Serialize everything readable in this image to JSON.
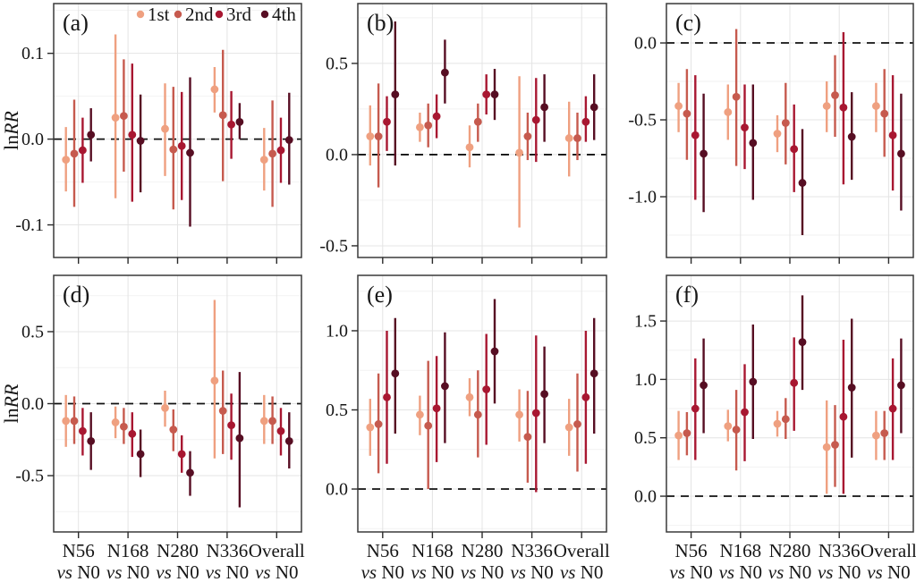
{
  "figure": {
    "background": "#ffffff"
  },
  "chart_data": {
    "type": "scatter",
    "subtype": "point-with-error-bars",
    "ylabel": {
      "plain": "ln",
      "italic": "RR"
    },
    "categories": [
      "N56",
      "N168",
      "N280",
      "N336",
      "Overall"
    ],
    "category_line2": {
      "italic": "vs",
      "rest": "N0"
    },
    "series": [
      {
        "name": "1st",
        "color": "#EFA080"
      },
      {
        "name": "2nd",
        "color": "#C65A4E"
      },
      {
        "name": "3rd",
        "color": "#A81731"
      },
      {
        "name": "4th",
        "color": "#570E23"
      }
    ],
    "legend_position": "top-of-panel-a",
    "grid": "light-gray-major-and-minor",
    "zero_line": 0,
    "panels": [
      {
        "label": "(a)",
        "show_ylabel": true,
        "show_legend": true,
        "show_xlabels": false,
        "ylim": [
          -0.138,
          0.158
        ],
        "yticks": [
          {
            "v": 0.1,
            "t": "0.1"
          },
          {
            "v": 0.0,
            "t": "0.0"
          },
          {
            "v": -0.1,
            "t": "-0.1"
          }
        ],
        "values": [
          [
            [
              -0.024,
              -0.061,
              0.014
            ],
            [
              -0.017,
              -0.079,
              0.046
            ],
            [
              -0.013,
              -0.051,
              0.025
            ],
            [
              0.005,
              -0.026,
              0.036
            ]
          ],
          [
            [
              0.025,
              -0.069,
              0.122
            ],
            [
              0.027,
              -0.038,
              0.093
            ],
            [
              0.005,
              -0.073,
              0.088
            ],
            [
              -0.002,
              -0.062,
              0.052
            ]
          ],
          [
            [
              0.012,
              -0.043,
              0.065
            ],
            [
              -0.012,
              -0.082,
              0.061
            ],
            [
              -0.008,
              -0.071,
              0.055
            ],
            [
              -0.016,
              -0.102,
              0.072
            ]
          ],
          [
            [
              0.058,
              0.031,
              0.084
            ],
            [
              0.028,
              -0.049,
              0.104
            ],
            [
              0.017,
              -0.023,
              0.056
            ],
            [
              0.02,
              0.0,
              0.042
            ]
          ],
          [
            [
              -0.024,
              -0.06,
              0.013
            ],
            [
              -0.017,
              -0.079,
              0.045
            ],
            [
              -0.013,
              -0.051,
              0.025
            ],
            [
              -0.001,
              -0.053,
              0.054
            ]
          ]
        ]
      },
      {
        "label": "(b)",
        "show_ylabel": false,
        "show_legend": false,
        "show_xlabels": false,
        "ylim": [
          -0.564,
          0.828
        ],
        "yticks": [
          {
            "v": 0.5,
            "t": "0.5"
          },
          {
            "v": 0.0,
            "t": "0.0"
          },
          {
            "v": -0.5,
            "t": "-0.5"
          }
        ],
        "values": [
          [
            [
              0.1,
              -0.06,
              0.27
            ],
            [
              0.1,
              -0.18,
              0.39
            ],
            [
              0.18,
              0.02,
              0.32
            ],
            [
              0.33,
              -0.06,
              0.73
            ]
          ],
          [
            [
              0.15,
              0.07,
              0.23
            ],
            [
              0.16,
              0.04,
              0.28
            ],
            [
              0.21,
              0.09,
              0.33
            ],
            [
              0.45,
              0.28,
              0.63
            ]
          ],
          [
            [
              0.04,
              -0.07,
              0.16
            ],
            [
              0.18,
              0.07,
              0.28
            ],
            [
              0.33,
              0.22,
              0.44
            ],
            [
              0.33,
              0.19,
              0.47
            ]
          ],
          [
            [
              0.01,
              -0.4,
              0.43
            ],
            [
              0.1,
              -0.03,
              0.23
            ],
            [
              0.19,
              -0.04,
              0.42
            ],
            [
              0.26,
              0.07,
              0.44
            ]
          ],
          [
            [
              0.09,
              -0.12,
              0.29
            ],
            [
              0.09,
              -0.03,
              0.23
            ],
            [
              0.18,
              0.07,
              0.32
            ],
            [
              0.26,
              0.08,
              0.44
            ]
          ]
        ]
      },
      {
        "label": "(c)",
        "show_ylabel": false,
        "show_legend": false,
        "show_xlabels": false,
        "ylim": [
          -1.395,
          0.256
        ],
        "yticks": [
          {
            "v": 0.0,
            "t": "0.0"
          },
          {
            "v": -0.5,
            "t": "-0.5"
          },
          {
            "v": -1.0,
            "t": "-1.0"
          }
        ],
        "values": [
          [
            [
              -0.41,
              -0.58,
              -0.26
            ],
            [
              -0.46,
              -0.76,
              -0.17
            ],
            [
              -0.6,
              -1.02,
              -0.21
            ],
            [
              -0.72,
              -1.1,
              -0.33
            ]
          ],
          [
            [
              -0.45,
              -0.63,
              -0.27
            ],
            [
              -0.35,
              -0.8,
              0.09
            ],
            [
              -0.55,
              -0.82,
              -0.27
            ],
            [
              -0.65,
              -1.02,
              -0.27
            ]
          ],
          [
            [
              -0.59,
              -0.71,
              -0.47
            ],
            [
              -0.52,
              -0.79,
              -0.26
            ],
            [
              -0.69,
              -0.97,
              -0.4
            ],
            [
              -0.91,
              -1.25,
              -0.56
            ]
          ],
          [
            [
              -0.41,
              -0.58,
              -0.25
            ],
            [
              -0.34,
              -0.61,
              -0.08
            ],
            [
              -0.42,
              -0.92,
              0.07
            ],
            [
              -0.61,
              -0.89,
              -0.32
            ]
          ],
          [
            [
              -0.41,
              -0.58,
              -0.26
            ],
            [
              -0.46,
              -0.74,
              -0.17
            ],
            [
              -0.6,
              -0.96,
              -0.21
            ],
            [
              -0.72,
              -1.09,
              -0.33
            ]
          ]
        ]
      },
      {
        "label": "(d)",
        "show_ylabel": true,
        "show_legend": false,
        "show_xlabels": true,
        "ylim": [
          -0.891,
          0.891
        ],
        "yticks": [
          {
            "v": 0.5,
            "t": "0.5"
          },
          {
            "v": 0.0,
            "t": "0.0"
          },
          {
            "v": -0.5,
            "t": "-0.5"
          }
        ],
        "values": [
          [
            [
              -0.12,
              -0.3,
              0.06
            ],
            [
              -0.12,
              -0.28,
              0.05
            ],
            [
              -0.19,
              -0.36,
              -0.03
            ],
            [
              -0.26,
              -0.46,
              -0.06
            ]
          ],
          [
            [
              -0.13,
              -0.24,
              -0.02
            ],
            [
              -0.16,
              -0.28,
              -0.03
            ],
            [
              -0.21,
              -0.37,
              -0.06
            ],
            [
              -0.35,
              -0.51,
              -0.18
            ]
          ],
          [
            [
              -0.03,
              -0.16,
              0.09
            ],
            [
              -0.18,
              -0.33,
              -0.04
            ],
            [
              -0.35,
              -0.48,
              -0.22
            ],
            [
              -0.48,
              -0.64,
              -0.33
            ]
          ],
          [
            [
              0.16,
              -0.38,
              0.72
            ],
            [
              -0.05,
              -0.35,
              0.23
            ],
            [
              -0.15,
              -0.39,
              0.07
            ],
            [
              -0.24,
              -0.72,
              0.22
            ]
          ],
          [
            [
              -0.12,
              -0.28,
              0.06
            ],
            [
              -0.12,
              -0.28,
              0.05
            ],
            [
              -0.19,
              -0.36,
              -0.03
            ],
            [
              -0.26,
              -0.45,
              -0.06
            ]
          ]
        ]
      },
      {
        "label": "(e)",
        "show_ylabel": false,
        "show_legend": false,
        "show_xlabels": true,
        "ylim": [
          -0.271,
          1.35
        ],
        "yticks": [
          {
            "v": 1.0,
            "t": "1.0"
          },
          {
            "v": 0.5,
            "t": "0.5"
          },
          {
            "v": 0.0,
            "t": "0.0"
          }
        ],
        "values": [
          [
            [
              0.39,
              0.21,
              0.57
            ],
            [
              0.41,
              0.1,
              0.73
            ],
            [
              0.58,
              0.16,
              1.0
            ],
            [
              0.73,
              0.35,
              1.08
            ]
          ],
          [
            [
              0.47,
              0.34,
              0.59
            ],
            [
              0.4,
              0.0,
              0.81
            ],
            [
              0.51,
              0.17,
              0.84
            ],
            [
              0.65,
              0.29,
              0.99
            ]
          ],
          [
            [
              0.58,
              0.46,
              0.7
            ],
            [
              0.47,
              0.2,
              0.75
            ],
            [
              0.63,
              0.28,
              0.98
            ],
            [
              0.87,
              0.54,
              1.2
            ]
          ],
          [
            [
              0.47,
              0.3,
              0.63
            ],
            [
              0.33,
              0.04,
              0.62
            ],
            [
              0.48,
              -0.02,
              0.97
            ],
            [
              0.6,
              0.29,
              0.9
            ]
          ],
          [
            [
              0.39,
              0.21,
              0.57
            ],
            [
              0.41,
              0.11,
              0.73
            ],
            [
              0.58,
              0.16,
              1.0
            ],
            [
              0.73,
              0.35,
              1.08
            ]
          ]
        ]
      },
      {
        "label": "(f)",
        "show_ylabel": false,
        "show_legend": false,
        "show_xlabels": true,
        "ylim": [
          -0.306,
          1.891
        ],
        "yticks": [
          {
            "v": 1.5,
            "t": "1.5"
          },
          {
            "v": 1.0,
            "t": "1.0"
          },
          {
            "v": 0.5,
            "t": "0.5"
          },
          {
            "v": 0.0,
            "t": "0.0"
          }
        ],
        "values": [
          [
            [
              0.52,
              0.31,
              0.73
            ],
            [
              0.54,
              0.35,
              0.72
            ],
            [
              0.75,
              0.31,
              1.18
            ],
            [
              0.95,
              0.54,
              1.35
            ]
          ],
          [
            [
              0.6,
              0.47,
              0.74
            ],
            [
              0.57,
              0.22,
              0.91
            ],
            [
              0.72,
              0.3,
              1.13
            ],
            [
              0.98,
              0.49,
              1.47
            ]
          ],
          [
            [
              0.62,
              0.51,
              0.73
            ],
            [
              0.66,
              0.49,
              0.84
            ],
            [
              0.97,
              0.56,
              1.36
            ],
            [
              1.32,
              0.91,
              1.72
            ]
          ],
          [
            [
              0.42,
              0.02,
              0.82
            ],
            [
              0.44,
              0.08,
              0.78
            ],
            [
              0.68,
              0.02,
              1.34
            ],
            [
              0.93,
              0.33,
              1.52
            ]
          ],
          [
            [
              0.52,
              0.31,
              0.73
            ],
            [
              0.54,
              0.31,
              0.73
            ],
            [
              0.75,
              0.31,
              1.18
            ],
            [
              0.95,
              0.54,
              1.35
            ]
          ]
        ]
      }
    ]
  }
}
